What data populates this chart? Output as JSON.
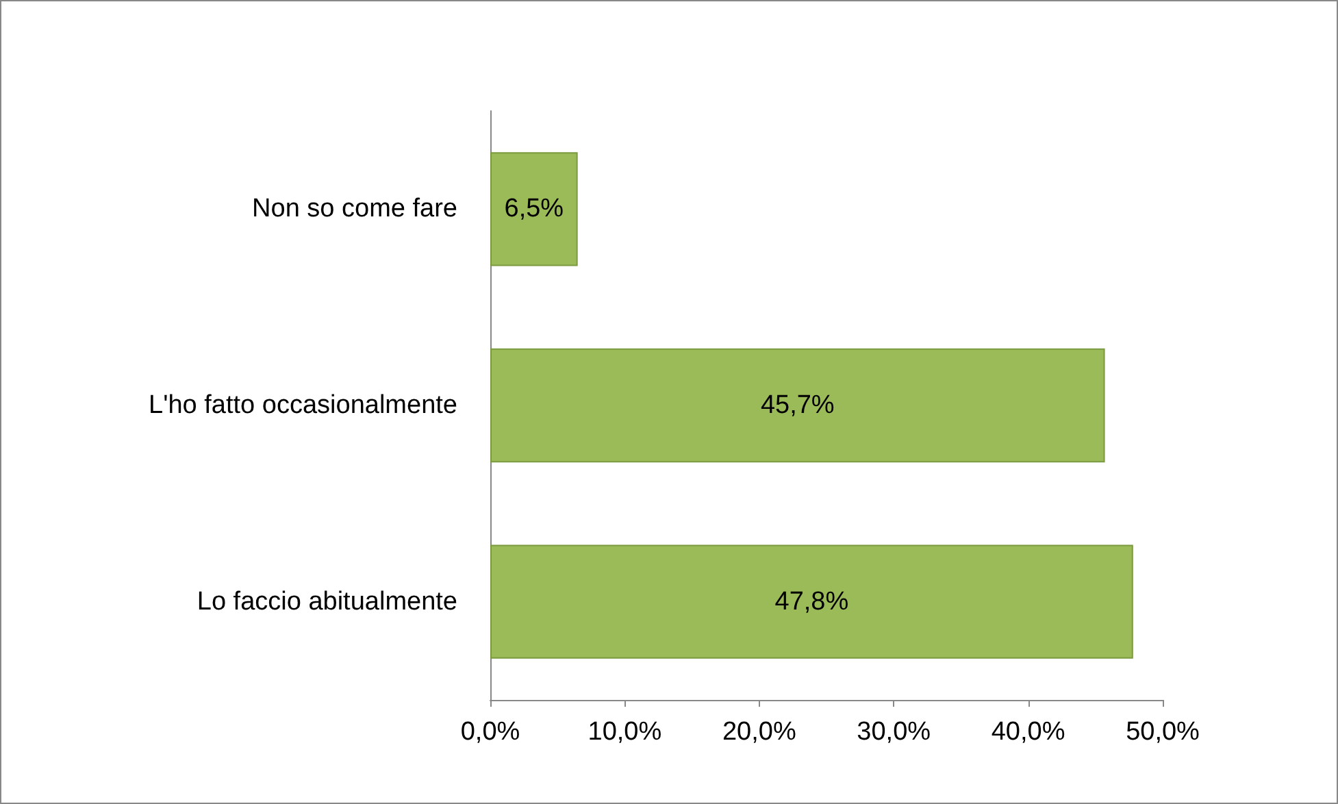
{
  "chart_data": {
    "type": "bar",
    "orientation": "horizontal",
    "categories": [
      "Non so come fare",
      "L'ho fatto occasionalmente",
      "Lo faccio abitualmente"
    ],
    "values": [
      6.5,
      45.7,
      47.8
    ],
    "value_labels": [
      "6,5%",
      "45,7%",
      "47,8%"
    ],
    "color": "#9bbb59",
    "xlim": [
      0,
      50
    ],
    "xticks": [
      {
        "value": 0,
        "label": "0,0%"
      },
      {
        "value": 10,
        "label": "10,0%"
      },
      {
        "value": 20,
        "label": "20,0%"
      },
      {
        "value": 30,
        "label": "30,0%"
      },
      {
        "value": 40,
        "label": "40,0%"
      },
      {
        "value": 50,
        "label": "50,0%"
      }
    ],
    "grid": false
  }
}
